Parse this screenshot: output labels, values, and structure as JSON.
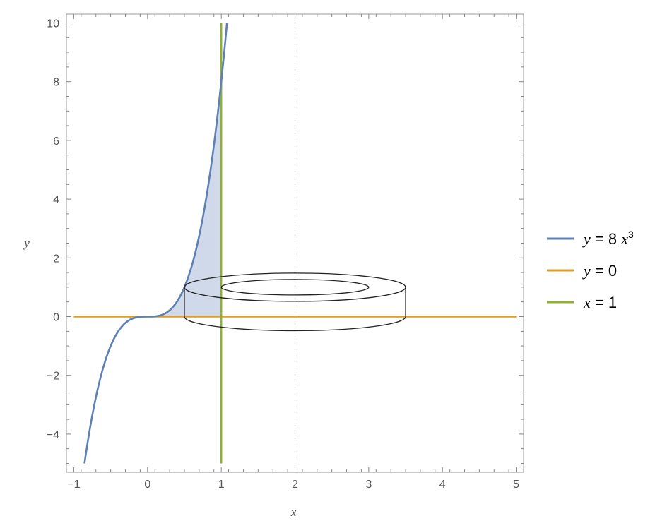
{
  "chart_data": {
    "type": "line",
    "title": "",
    "xlabel": "x",
    "ylabel": "y",
    "xlim": [
      -1.1,
      5.1
    ],
    "ylim": [
      -5.3,
      10.3
    ],
    "x_ticks": [
      -1,
      0,
      1,
      2,
      3,
      4,
      5
    ],
    "y_ticks": [
      -4,
      -2,
      0,
      2,
      4,
      6,
      8,
      10
    ],
    "x_tick_labels": [
      "−1",
      "0",
      "1",
      "2",
      "3",
      "4",
      "5"
    ],
    "y_tick_labels": [
      "−4",
      "−2",
      "0",
      "2",
      "4",
      "6",
      "8",
      "10"
    ],
    "grid": false,
    "legend_position": "right",
    "series": [
      {
        "name": "y = 8 x³",
        "legend": {
          "lhs": "y",
          "eq": " = 8 ",
          "var": "x",
          "sup": "3"
        },
        "color": "#5e81b5",
        "kind": "curve",
        "x_range": [
          -0.855,
          1.077
        ]
      },
      {
        "name": "y = 0",
        "legend": {
          "lhs": "y",
          "eq": " = 0",
          "var": "",
          "sup": ""
        },
        "color": "#e19c24",
        "kind": "horizontal",
        "y": 0,
        "x_range": [
          -1,
          5
        ]
      },
      {
        "name": "x = 1",
        "legend": {
          "lhs": "x",
          "eq": " = 1",
          "var": "",
          "sup": ""
        },
        "color": "#8fb032",
        "kind": "vertical",
        "x": 1,
        "y_range": [
          -5,
          10
        ]
      }
    ],
    "shaded_region": {
      "between": "y = 8x³ and y = 0",
      "x_range": [
        0,
        1
      ],
      "color": "#c7d2e6"
    },
    "washer": {
      "center_x": 2,
      "inner_radius": 1,
      "outer_radius": 1.5,
      "bottom_y": 0,
      "top_y": 1
    },
    "axis_of_rotation": {
      "x": 2,
      "style": "dashed"
    }
  }
}
